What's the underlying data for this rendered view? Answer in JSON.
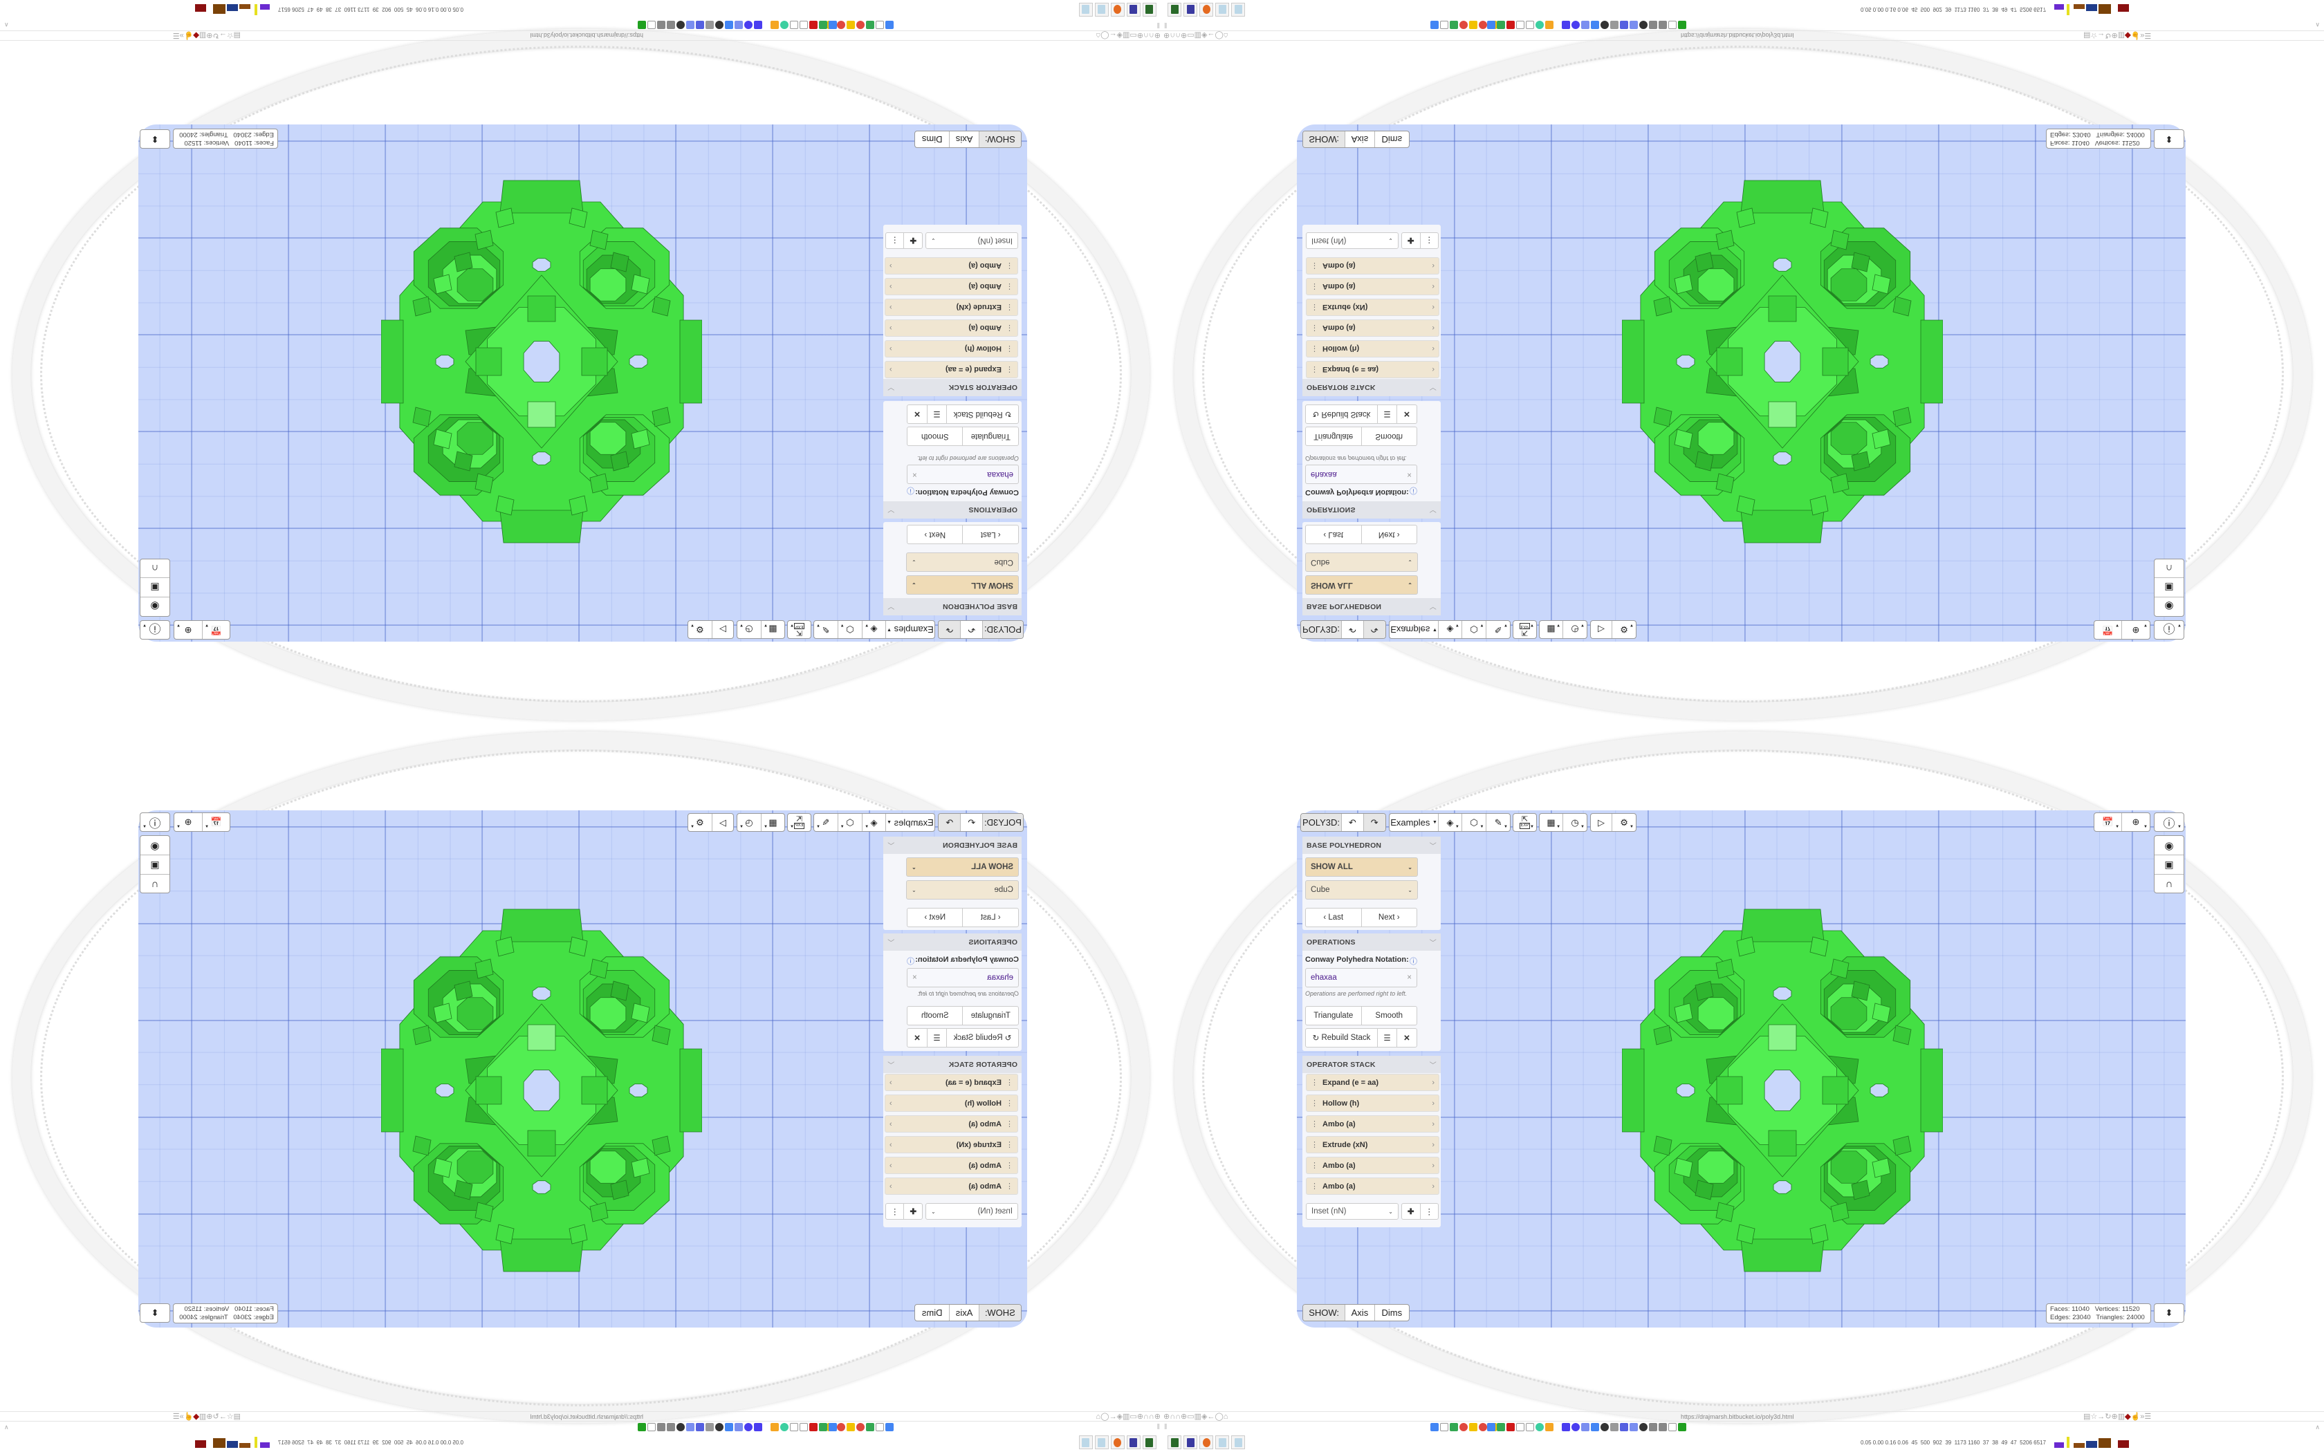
{
  "app": {
    "name": "POLY3D:"
  },
  "toolbar": {
    "undo_icon": "undo-icon",
    "redo_icon": "redo-icon",
    "examples_label": "Examples",
    "icons": [
      "paint-bucket-icon",
      "cube-play-icon",
      "pencil-icon",
      "export-icon",
      "table-icon",
      "clock-icon",
      "play-icon",
      "gear-icon"
    ],
    "export_badge": "EXP"
  },
  "base_polyhedron": {
    "header": "BASE POLYHEDRON",
    "filter": "SHOW ALL",
    "shape": "Cube",
    "last_label": "Last",
    "next_label": "Next"
  },
  "operations": {
    "header": "OPERATIONS",
    "notation_label": "Conway Polyhedra Notation:",
    "notation_value": "ehaxaa",
    "hint": "Operations are perfomed right to left.",
    "triangulate_label": "Triangulate",
    "smooth_label": "Smooth",
    "rebuild_label": "Rebuild Stack"
  },
  "operator_stack": {
    "header": "OPERATOR STACK",
    "items": [
      {
        "label": "Expand (e = aa)"
      },
      {
        "label": "Hollow (h)"
      },
      {
        "label": "Ambo (a)"
      },
      {
        "label": "Extrude (xN)"
      },
      {
        "label": "Ambo (a)"
      },
      {
        "label": "Ambo (a)"
      }
    ],
    "add_select": "Inset (nN)"
  },
  "show_bar": {
    "label": "SHOW:",
    "axis": "Axis",
    "dims": "Dims"
  },
  "stats": {
    "faces_label": "Faces:",
    "faces": "11040",
    "vertices_label": "Vertices:",
    "vertices": "11520",
    "edges_label": "Edges:",
    "edges": "23040",
    "triangles_label": "Triangles:",
    "triangles": "24000"
  },
  "right_tools": [
    "calendar-clock-icon",
    "globe-icon",
    "info-icon",
    "eye-icon",
    "toggle-icon",
    "magnet-icon",
    "view-reset-icon"
  ],
  "browser": {
    "url": "https://drajmarsh.bitbucket.io/poly3d.html",
    "tray_readout": "0.05 0.00 0.16 0.06  45  500  902  39  1173 1160  37  38  49  47  5206 6517"
  },
  "colors": {
    "viewport_bg": "#c9d7fb",
    "polyhedron_fill": "#44e044",
    "polyhedron_edge": "#1f7a1f",
    "stack_item_bg": "#f0e6d2",
    "notation_text": "#4b1a8c"
  }
}
